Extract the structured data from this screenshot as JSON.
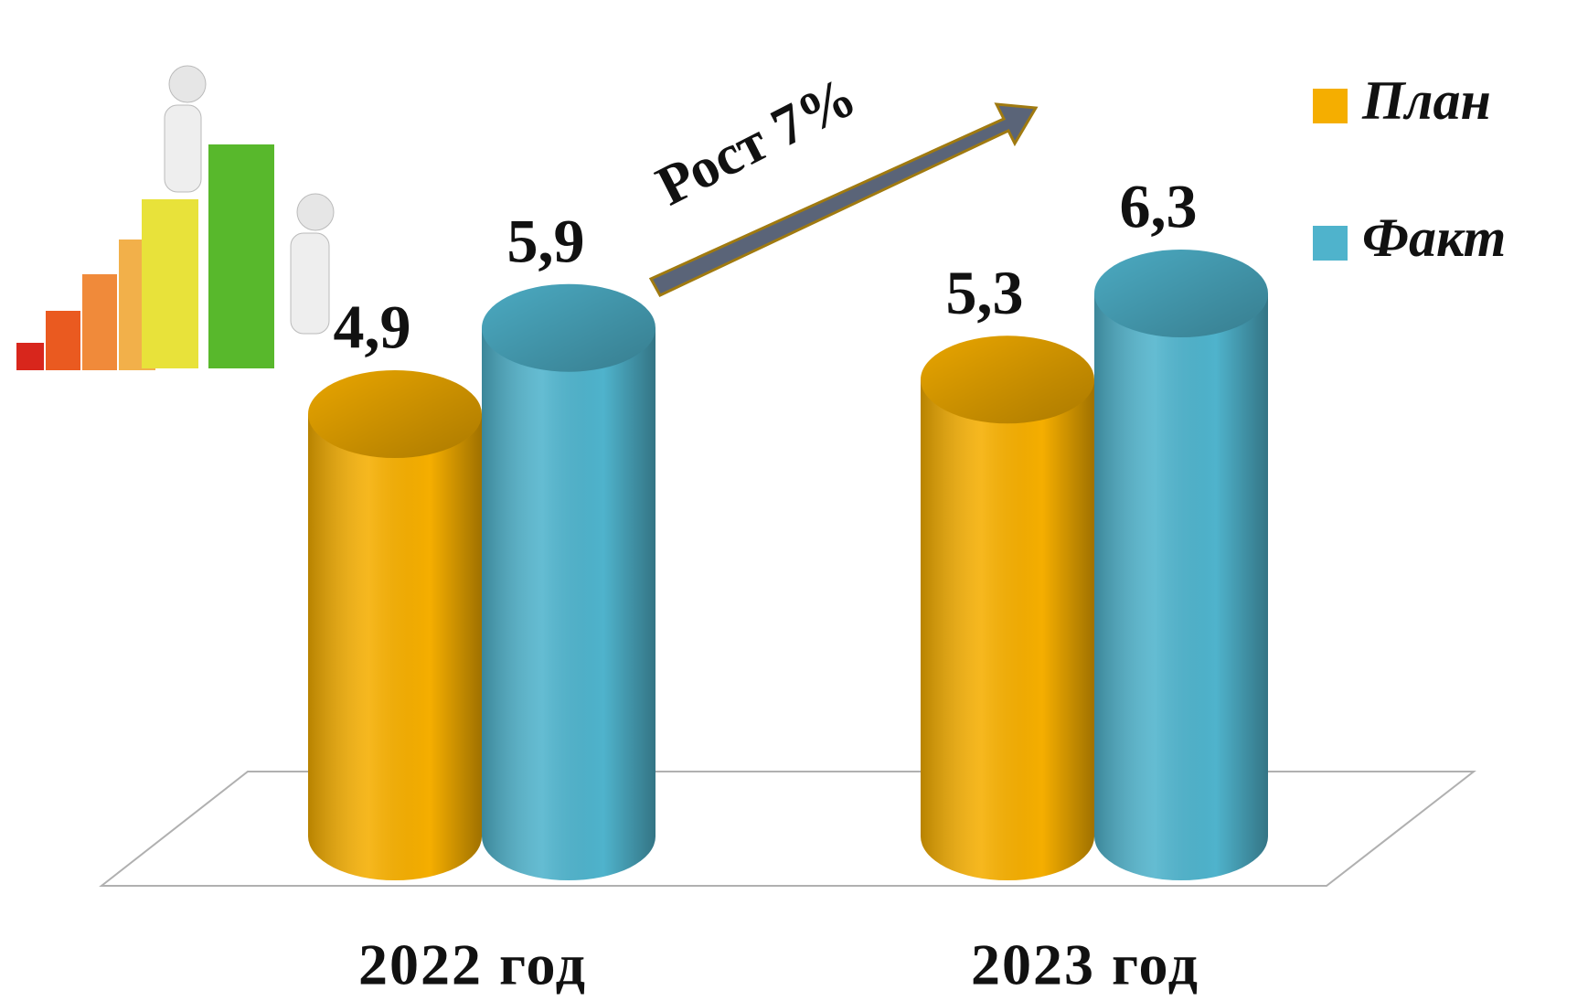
{
  "chart_data": {
    "type": "bar",
    "categories": [
      "2022 год",
      "2023 год"
    ],
    "series": [
      {
        "name": "План",
        "color": "#f5ae00",
        "values": [
          4.9,
          5.3
        ],
        "value_labels": [
          "4,9",
          "5,3"
        ]
      },
      {
        "name": "Факт",
        "color": "#4fb3cc",
        "values": [
          5.9,
          6.3
        ],
        "value_labels": [
          "5,9",
          "6,3"
        ]
      }
    ],
    "annotation": "Рост 7%",
    "legend": "top-right"
  }
}
